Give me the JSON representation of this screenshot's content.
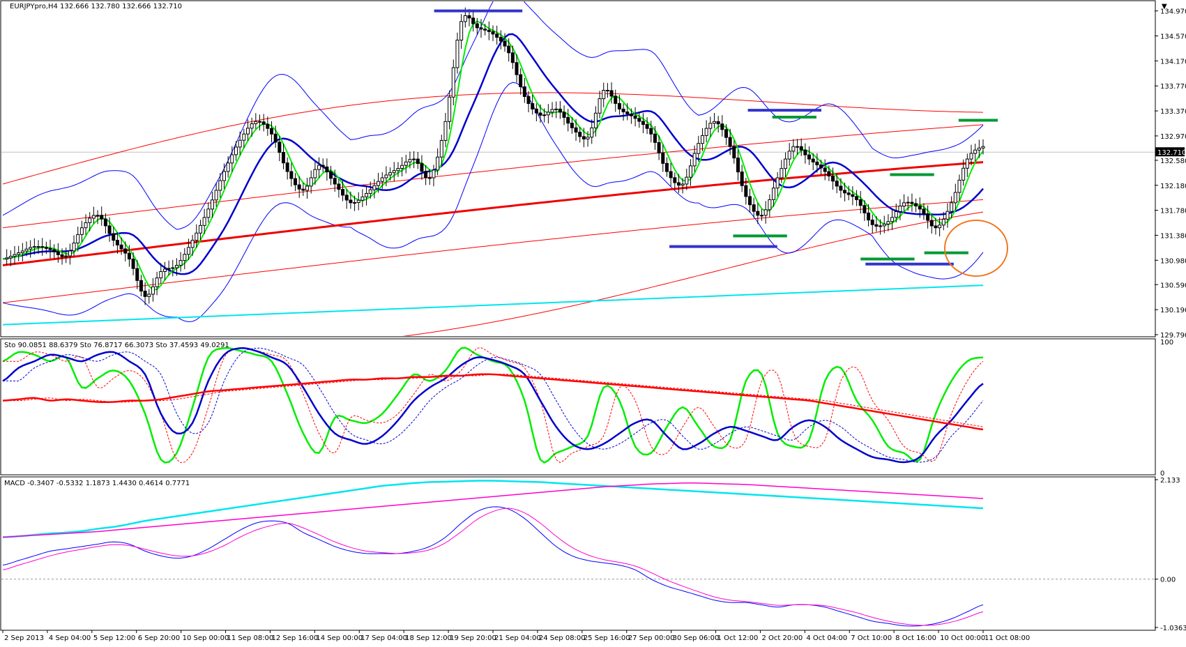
{
  "colors": {
    "background": "#ffffff",
    "frame": "#000000",
    "bull_candle": "#ffffff",
    "bear_candle": "#000000",
    "bollinger": "#0000ff",
    "envelope": "#ff0000",
    "ma_green": "#00ee00",
    "ma_blue": "#0000cc",
    "ma_red": "#ee0000",
    "ma_cyan": "#00e5ee",
    "stoch_signal": "#ff0000",
    "macd_main": "#00e5ee",
    "macd_signal": "#ff00cc",
    "macd_fast": "#0000ff",
    "macd_fast_signal": "#ff00cc",
    "support": "#009933",
    "resistance": "#3333cc",
    "circle": "#f07820",
    "price_line": "#c0c0c0"
  },
  "header": {
    "symbol_label": "EURJPYpro,H4",
    "ohlc": "132.666 132.780 132.666 132.710"
  },
  "current_price": "132.710",
  "chart_data": [
    {
      "type": "line",
      "title": "EURJPYpro,H4",
      "y_axis_ticks": [
        "134.970",
        "134.570",
        "134.170",
        "133.770",
        "133.370",
        "132.970",
        "132.580",
        "132.180",
        "131.780",
        "131.380",
        "130.980",
        "130.590",
        "130.190",
        "129.790"
      ],
      "ylim": [
        129.79,
        135.1
      ],
      "grid": false,
      "x_axis_ticks": [
        "2 Sep 2013",
        "4 Sep 04:00",
        "5 Sep 12:00",
        "6 Sep 20:00",
        "10 Sep 00:00",
        "11 Sep 08:00",
        "12 Sep 16:00",
        "14 Sep 00:00",
        "17 Sep 04:00",
        "18 Sep 12:00",
        "19 Sep 20:00",
        "21 Sep 04:00",
        "24 Sep 08:00",
        "25 Sep 16:00",
        "27 Sep 00:00",
        "30 Sep 06:00",
        "1 Oct 12:00",
        "2 Oct 20:00",
        "4 Oct 04:00",
        "7 Oct 10:00",
        "8 Oct 16:00",
        "10 Oct 00:00",
        "11 Oct 08:00"
      ],
      "price_anchor_series": [
        131.0,
        131.1,
        131.2,
        131.15,
        131.05,
        131.5,
        131.7,
        131.3,
        131.0,
        130.4,
        130.8,
        130.9,
        131.3,
        131.8,
        132.4,
        132.9,
        133.2,
        133.0,
        132.4,
        132.1,
        132.5,
        132.2,
        131.9,
        132.05,
        132.3,
        132.45,
        132.6,
        132.3,
        133.2,
        134.8,
        134.7,
        134.6,
        134.3,
        133.6,
        133.3,
        133.4,
        133.1,
        132.95,
        133.7,
        133.4,
        133.25,
        133.0,
        132.4,
        132.2,
        132.85,
        133.2,
        132.8,
        132.0,
        131.7,
        132.3,
        132.8,
        132.6,
        132.4,
        132.1,
        131.95,
        131.55,
        131.6,
        131.9,
        131.8,
        131.5,
        131.9,
        132.6,
        132.8
      ],
      "series": []
    },
    {
      "type": "line",
      "title": "Sto 90.0851 88.6379 Sto 76.8717 66.3073 Sto 37.4593 49.0291",
      "y_axis_ticks": [
        "100",
        "0"
      ],
      "ylim": [
        0,
        100
      ],
      "grid": false,
      "series": [
        {
          "values": [
            85,
            92,
            90,
            85,
            88,
            65,
            72,
            78,
            70,
            45,
            10,
            15,
            50,
            88,
            95,
            93,
            90,
            85,
            60,
            30,
            15,
            42,
            40,
            38,
            45,
            60,
            75,
            70,
            78,
            95,
            90,
            85,
            80,
            55,
            10,
            15,
            20,
            28,
            65,
            55,
            20,
            15,
            35,
            50,
            35,
            20,
            25,
            70,
            75,
            30,
            20,
            25,
            70,
            80,
            55,
            40,
            20,
            15,
            10,
            45,
            70,
            85,
            88
          ]
        },
        {
          "values": [
            70,
            80,
            85,
            90,
            88,
            85,
            90,
            92,
            85,
            75,
            45,
            30,
            38,
            70,
            90,
            95,
            93,
            88,
            82,
            65,
            45,
            30,
            25,
            22,
            28,
            40,
            55,
            65,
            72,
            82,
            88,
            86,
            82,
            75,
            55,
            35,
            22,
            18,
            22,
            30,
            38,
            40,
            28,
            18,
            22,
            30,
            35,
            32,
            28,
            25,
            35,
            40,
            35,
            25,
            18,
            12,
            10,
            8,
            12,
            28,
            40,
            55,
            68
          ]
        },
        {
          "values": [
            55,
            56,
            57,
            55,
            56,
            55,
            54,
            54,
            55,
            55,
            56,
            58,
            60,
            62,
            63,
            64,
            65,
            66,
            67,
            68,
            69,
            70,
            71,
            71,
            72,
            72,
            73,
            73,
            74,
            74,
            75,
            75,
            74,
            73,
            72,
            71,
            70,
            69,
            68,
            67,
            66,
            65,
            64,
            63,
            62,
            61,
            60,
            59,
            58,
            57,
            56,
            55,
            53,
            51,
            49,
            47,
            45,
            43,
            41,
            39,
            37,
            35,
            33
          ]
        }
      ]
    },
    {
      "type": "line",
      "title": "MACD -0.3407 -0.5332 1.1873 1.4430 0.4614 0.7771",
      "y_axis_ticks": [
        "2.133",
        "0.00",
        "-1.0363"
      ],
      "ylim": [
        -1.0363,
        2.133
      ],
      "grid": false,
      "series": [
        {
          "values": [
            0.9,
            0.92,
            0.95,
            0.98,
            1.0,
            1.03,
            1.08,
            1.12,
            1.18,
            1.25,
            1.3,
            1.35,
            1.4,
            1.45,
            1.5,
            1.55,
            1.6,
            1.65,
            1.7,
            1.75,
            1.8,
            1.85,
            1.9,
            1.95,
            2.0,
            2.03,
            2.06,
            2.08,
            2.09,
            2.1,
            2.11,
            2.11,
            2.1,
            2.09,
            2.08,
            2.06,
            2.04,
            2.02,
            2.0,
            1.98,
            1.96,
            1.94,
            1.92,
            1.9,
            1.88,
            1.86,
            1.84,
            1.82,
            1.8,
            1.78,
            1.76,
            1.74,
            1.72,
            1.7,
            1.68,
            1.66,
            1.64,
            1.62,
            1.6,
            1.58,
            1.56,
            1.54,
            1.52
          ]
        },
        {
          "values": [
            0.9,
            0.92,
            0.94,
            0.96,
            0.98,
            1.0,
            1.02,
            1.05,
            1.08,
            1.11,
            1.14,
            1.17,
            1.2,
            1.23,
            1.26,
            1.29,
            1.32,
            1.35,
            1.38,
            1.41,
            1.44,
            1.47,
            1.5,
            1.53,
            1.56,
            1.59,
            1.62,
            1.65,
            1.68,
            1.71,
            1.74,
            1.77,
            1.8,
            1.83,
            1.86,
            1.89,
            1.92,
            1.95,
            1.98,
            2.0,
            2.02,
            2.04,
            2.05,
            2.06,
            2.06,
            2.05,
            2.04,
            2.03,
            2.01,
            1.99,
            1.97,
            1.95,
            1.93,
            1.91,
            1.89,
            1.87,
            1.85,
            1.83,
            1.81,
            1.79,
            1.77,
            1.75,
            1.73
          ]
        },
        {
          "values": [
            0.3,
            0.4,
            0.5,
            0.6,
            0.65,
            0.7,
            0.75,
            0.8,
            0.75,
            0.6,
            0.5,
            0.45,
            0.5,
            0.65,
            0.85,
            1.05,
            1.2,
            1.25,
            1.2,
            1.0,
            0.85,
            0.7,
            0.6,
            0.55,
            0.55,
            0.55,
            0.6,
            0.7,
            0.9,
            1.2,
            1.45,
            1.55,
            1.5,
            1.3,
            1.0,
            0.7,
            0.5,
            0.4,
            0.35,
            0.3,
            0.2,
            0.0,
            -0.15,
            -0.25,
            -0.35,
            -0.45,
            -0.5,
            -0.5,
            -0.55,
            -0.6,
            -0.55,
            -0.55,
            -0.6,
            -0.7,
            -0.8,
            -0.9,
            -0.95,
            -1.0,
            -1.0,
            -0.95,
            -0.85,
            -0.7,
            -0.55
          ]
        },
        {
          "values": [
            0.2,
            0.3,
            0.4,
            0.5,
            0.58,
            0.64,
            0.7,
            0.74,
            0.72,
            0.64,
            0.56,
            0.5,
            0.5,
            0.58,
            0.72,
            0.9,
            1.05,
            1.15,
            1.2,
            1.1,
            0.95,
            0.8,
            0.68,
            0.6,
            0.57,
            0.55,
            0.57,
            0.63,
            0.78,
            1.02,
            1.28,
            1.45,
            1.52,
            1.42,
            1.2,
            0.92,
            0.68,
            0.52,
            0.42,
            0.36,
            0.28,
            0.14,
            -0.02,
            -0.15,
            -0.27,
            -0.38,
            -0.45,
            -0.48,
            -0.52,
            -0.56,
            -0.55,
            -0.55,
            -0.57,
            -0.64,
            -0.72,
            -0.82,
            -0.9,
            -0.96,
            -0.99,
            -0.98,
            -0.92,
            -0.82,
            -0.7
          ]
        }
      ]
    }
  ]
}
